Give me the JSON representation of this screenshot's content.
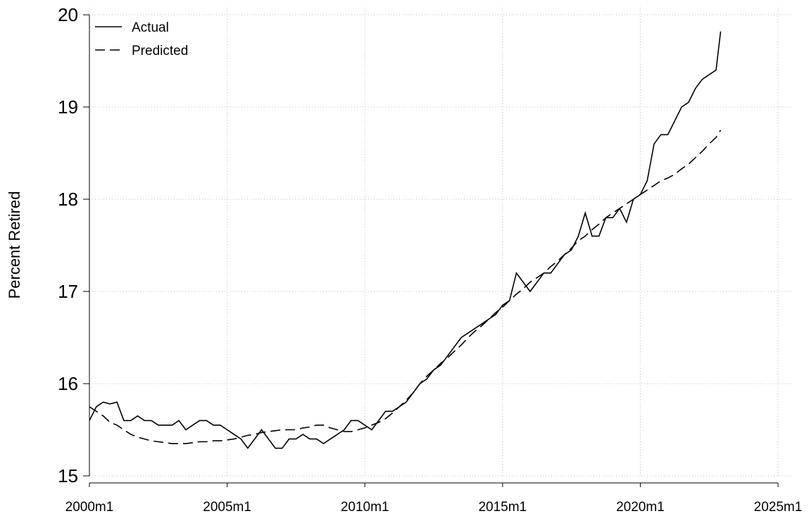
{
  "chart_data": {
    "type": "line",
    "y_label": "Percent Retired",
    "x": [
      "2000m1",
      "2000m4",
      "2000m7",
      "2000m10",
      "2001m1",
      "2001m4",
      "2001m7",
      "2001m10",
      "2002m1",
      "2002m4",
      "2002m7",
      "2002m10",
      "2003m1",
      "2003m4",
      "2003m7",
      "2003m10",
      "2004m1",
      "2004m4",
      "2004m7",
      "2004m10",
      "2005m1",
      "2005m4",
      "2005m7",
      "2005m10",
      "2006m1",
      "2006m4",
      "2006m7",
      "2006m10",
      "2007m1",
      "2007m4",
      "2007m7",
      "2007m10",
      "2008m1",
      "2008m4",
      "2008m7",
      "2008m10",
      "2009m1",
      "2009m4",
      "2009m7",
      "2009m10",
      "2010m1",
      "2010m4",
      "2010m7",
      "2010m10",
      "2011m1",
      "2011m4",
      "2011m7",
      "2011m10",
      "2012m1",
      "2012m4",
      "2012m7",
      "2012m10",
      "2013m1",
      "2013m4",
      "2013m7",
      "2013m10",
      "2014m1",
      "2014m4",
      "2014m7",
      "2014m10",
      "2015m1",
      "2015m4",
      "2015m7",
      "2015m10",
      "2016m1",
      "2016m4",
      "2016m7",
      "2016m10",
      "2017m1",
      "2017m4",
      "2017m7",
      "2017m10",
      "2018m1",
      "2018m4",
      "2018m7",
      "2018m10",
      "2019m1",
      "2019m4",
      "2019m7",
      "2019m10",
      "2020m1",
      "2020m4",
      "2020m7",
      "2020m10",
      "2021m1",
      "2021m4",
      "2021m7",
      "2021m10",
      "2022m1",
      "2022m4",
      "2022m7",
      "2022m10",
      "2022m12"
    ],
    "series": [
      {
        "name": "Actual",
        "color": "#000000",
        "dash": "solid",
        "values": [
          15.6,
          15.75,
          15.8,
          15.78,
          15.8,
          15.6,
          15.6,
          15.65,
          15.6,
          15.6,
          15.55,
          15.55,
          15.55,
          15.6,
          15.5,
          15.55,
          15.6,
          15.6,
          15.55,
          15.55,
          15.5,
          15.45,
          15.4,
          15.3,
          15.4,
          15.5,
          15.4,
          15.3,
          15.3,
          15.4,
          15.4,
          15.45,
          15.4,
          15.4,
          15.35,
          15.4,
          15.45,
          15.5,
          15.6,
          15.6,
          15.55,
          15.5,
          15.6,
          15.7,
          15.7,
          15.75,
          15.8,
          15.9,
          16.0,
          16.05,
          16.15,
          16.2,
          16.3,
          16.4,
          16.5,
          16.55,
          16.6,
          16.65,
          16.7,
          16.75,
          16.85,
          16.9,
          17.2,
          17.1,
          17.0,
          17.1,
          17.2,
          17.2,
          17.3,
          17.4,
          17.45,
          17.6,
          17.85,
          17.6,
          17.6,
          17.8,
          17.8,
          17.9,
          17.75,
          18.0,
          18.05,
          18.2,
          18.6,
          18.7,
          18.7,
          18.85,
          19.0,
          19.05,
          19.2,
          19.3,
          19.35,
          19.4,
          19.82
        ]
      },
      {
        "name": "Predicted",
        "color": "#000000",
        "dash": "dashed",
        "values": [
          15.75,
          15.7,
          15.65,
          15.58,
          15.55,
          15.5,
          15.45,
          15.42,
          15.4,
          15.38,
          15.37,
          15.36,
          15.35,
          15.35,
          15.35,
          15.36,
          15.37,
          15.37,
          15.38,
          15.38,
          15.39,
          15.4,
          15.42,
          15.44,
          15.45,
          15.47,
          15.48,
          15.49,
          15.5,
          15.5,
          15.5,
          15.52,
          15.53,
          15.55,
          15.55,
          15.52,
          15.5,
          15.48,
          15.48,
          15.5,
          15.52,
          15.55,
          15.58,
          15.62,
          15.68,
          15.75,
          15.82,
          15.9,
          16.0,
          16.08,
          16.15,
          16.22,
          16.28,
          16.35,
          16.42,
          16.5,
          16.57,
          16.63,
          16.7,
          16.77,
          16.83,
          16.9,
          16.97,
          17.03,
          17.1,
          17.15,
          17.2,
          17.27,
          17.33,
          17.4,
          17.47,
          17.55,
          17.6,
          17.67,
          17.73,
          17.8,
          17.85,
          17.9,
          17.95,
          18.0,
          18.05,
          18.1,
          18.15,
          18.2,
          18.23,
          18.27,
          18.33,
          18.38,
          18.45,
          18.52,
          18.6,
          18.67,
          18.75
        ]
      }
    ],
    "xlim": [
      "2000m1",
      "2025m1"
    ],
    "xticks": [
      "2000m1",
      "2005m1",
      "2010m1",
      "2015m1",
      "2020m1",
      "2025m1"
    ],
    "ylim": [
      15,
      20
    ],
    "yticks": [
      15,
      16,
      17,
      18,
      19,
      20
    ],
    "grid": true,
    "legend": "top-left"
  }
}
